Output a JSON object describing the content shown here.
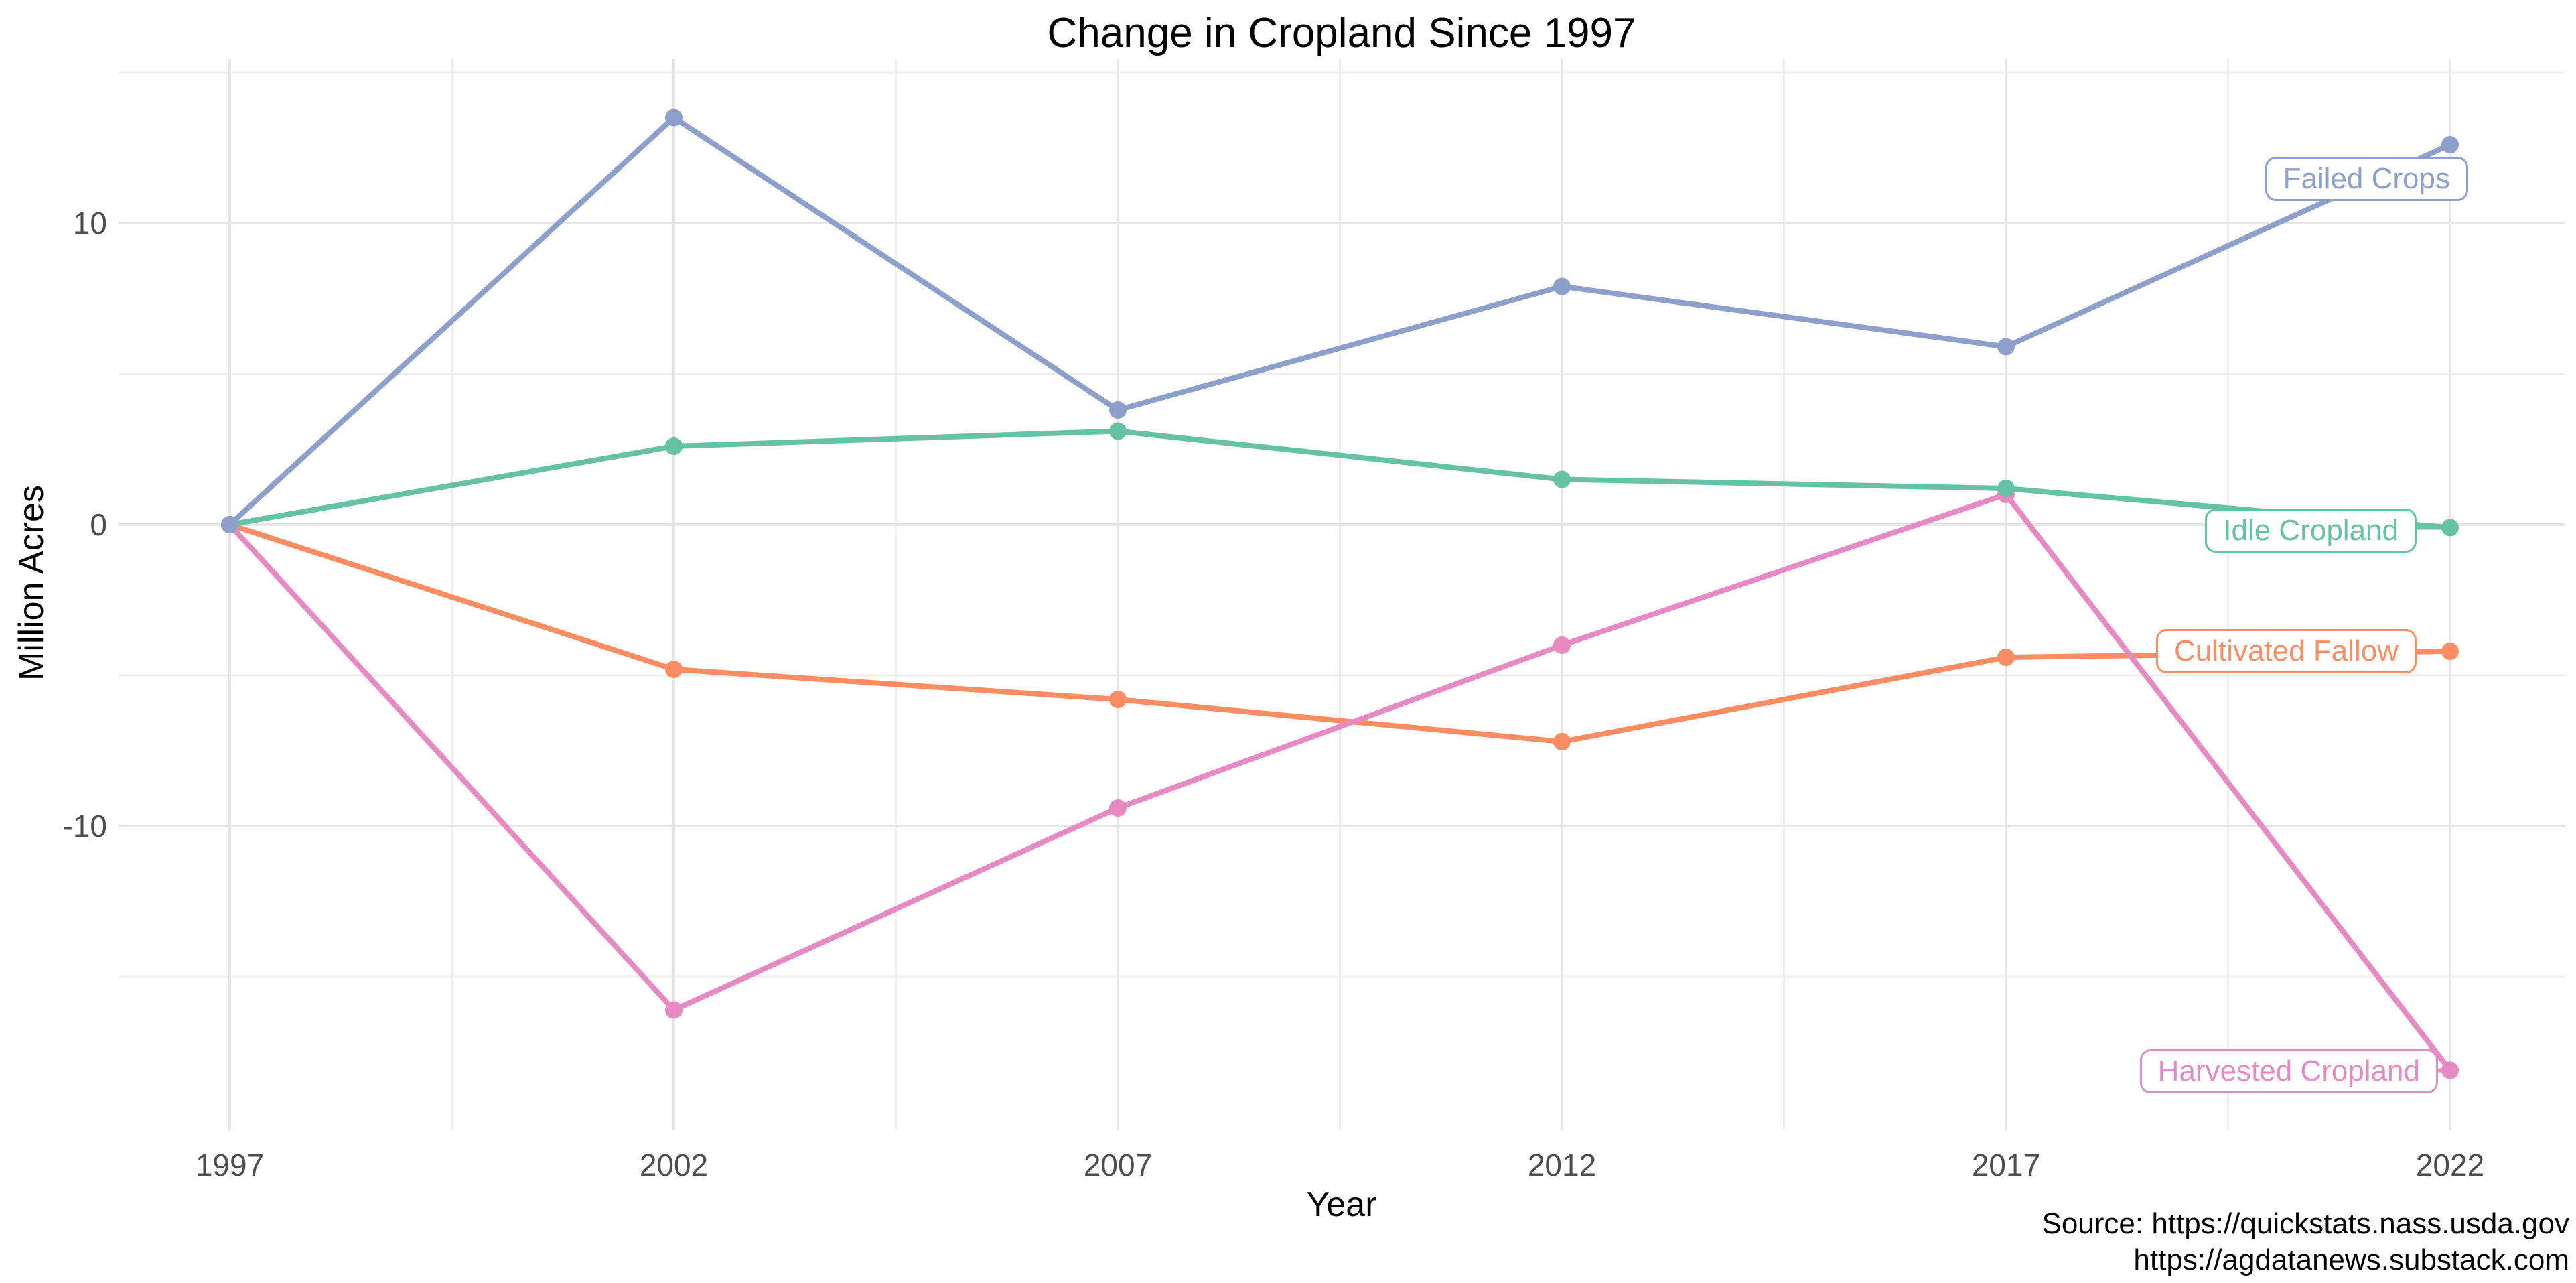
{
  "title": "Change in Cropland Since 1997",
  "source": {
    "line1": "Source: https://quickstats.nass.usda.gov",
    "line2": "https://agdatanews.substack.com"
  },
  "chart_data": {
    "type": "line",
    "title": "Change in Cropland Since 1997",
    "xlabel": "Year",
    "ylabel": "Million Acres",
    "x": [
      1997,
      2002,
      2007,
      2012,
      2017,
      2022
    ],
    "x_tick_labels": [
      "1997",
      "2002",
      "2007",
      "2012",
      "2017",
      "2022"
    ],
    "y_ticks": [
      10,
      0,
      -10
    ],
    "y_tick_labels": [
      "10",
      "0",
      "-10"
    ],
    "y_minor_gridlines": [
      15,
      5,
      -5,
      -15
    ],
    "ylim": [
      -20.1,
      15.4
    ],
    "xlim": [
      1995.75,
      2023.25
    ],
    "grid": "major and minor, light gray on white",
    "legend_position": "direct line-end labels (boxed)",
    "series": [
      {
        "name": "Cultivated Fallow",
        "color": "#fc8d62",
        "values": [
          0,
          -4.8,
          -5.8,
          -7.2,
          -4.4,
          -4.2
        ]
      },
      {
        "name": "Harvested Cropland",
        "color": "#e78ac3",
        "values": [
          0,
          -16.1,
          -9.4,
          -4.0,
          1.0,
          -18.1
        ]
      },
      {
        "name": "Idle Cropland",
        "color": "#66c2a5",
        "values": [
          0,
          2.6,
          3.1,
          1.5,
          1.2,
          -0.1
        ]
      },
      {
        "name": "Failed Crops",
        "color": "#8da0cb",
        "values": [
          0,
          13.5,
          3.8,
          7.9,
          5.9,
          12.6
        ]
      }
    ],
    "point_markers": true,
    "tick_label_color": "#4d4d4d",
    "major_grid_color": "#e5e5e5",
    "minor_grid_color": "#eeeeee"
  }
}
